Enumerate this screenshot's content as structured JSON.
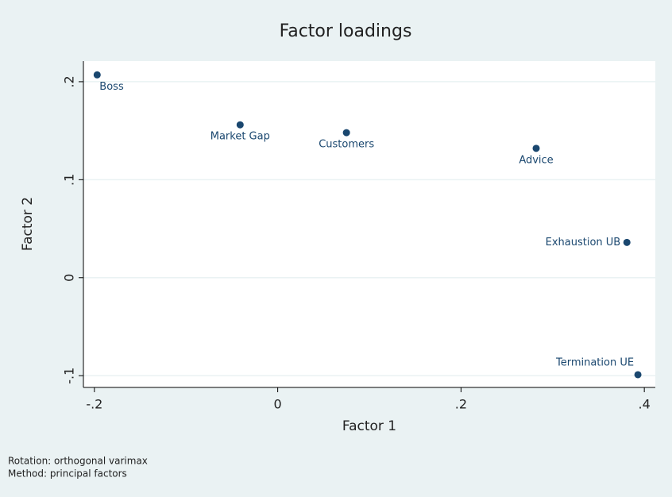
{
  "chart_data": {
    "type": "scatter",
    "title": "Factor loadings",
    "x_label": "Factor 1",
    "y_label": "Factor 2",
    "labels": [
      "Boss",
      "Market Gap",
      "Customers",
      "Advice",
      "Exhaustion UB",
      "Termination UE"
    ],
    "x": [
      -0.197,
      -0.041,
      0.075,
      0.282,
      0.381,
      0.393
    ],
    "y": [
      0.207,
      0.156,
      0.148,
      0.132,
      0.036,
      -0.099
    ],
    "color": "#1a476f",
    "xlim": [
      -0.212,
      0.412
    ],
    "ylim": [
      -0.112,
      0.221
    ],
    "xticks": [
      {
        "value": -0.2,
        "label": "-.2"
      },
      0,
      {
        "value": 0.2,
        "label": ".2"
      },
      {
        "value": 0.4,
        "label": ".4"
      }
    ],
    "yticks": [
      {
        "value": -0.1,
        "label": "-.1"
      },
      0,
      {
        "value": 0.1,
        "label": ".1"
      },
      {
        "value": 0.2,
        "label": ".2"
      }
    ],
    "grid": true,
    "notes": [
      "Rotation: orthogonal varimax",
      "Method: principal factors"
    ]
  }
}
